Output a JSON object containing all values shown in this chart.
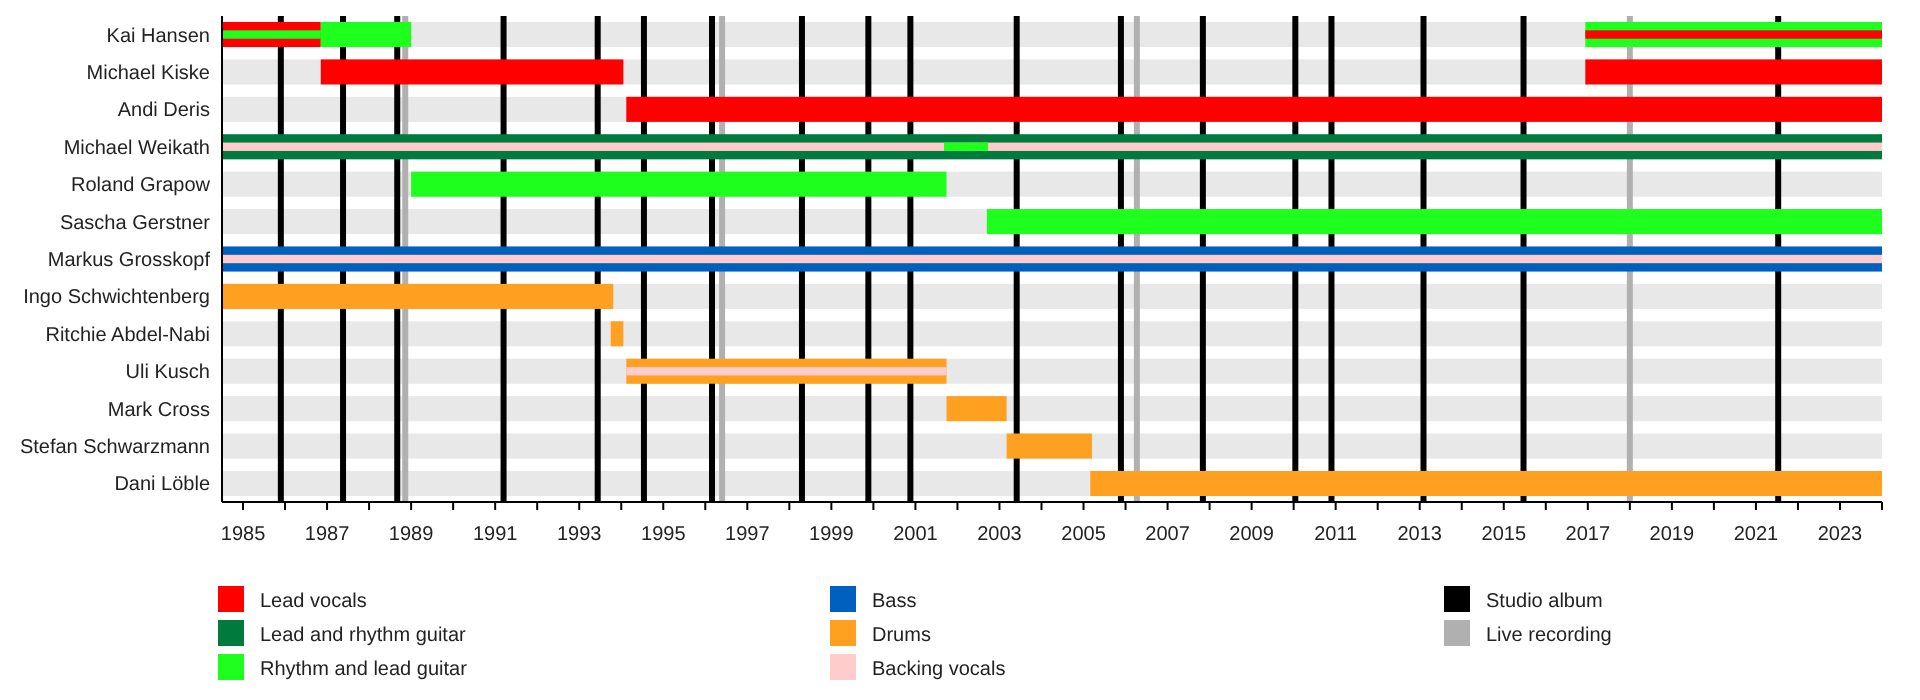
{
  "chart_data": {
    "type": "bar",
    "orientation": "horizontal",
    "legend": "bottom",
    "categories": [
      "Kai Hansen",
      "Michael Kiske",
      "Andi Deris",
      "Michael Weikath",
      "Roland Grapow",
      "Sascha Gerstner",
      "Markus Grosskopf",
      "Ingo Schwichtenberg",
      "Ritchie Abdel-Nabi",
      "Uli Kusch",
      "Mark Cross",
      "Stefan Schwarzmann",
      "Dani Löble"
    ],
    "xlim": [
      1984.5,
      2024
    ],
    "xticks": [
      1985,
      {
        "value": 1986,
        "label": null
      },
      1987,
      {
        "value": 1988,
        "label": null
      },
      1989,
      {
        "value": 1990,
        "label": null
      },
      1991,
      {
        "value": 1992,
        "label": null
      },
      1993,
      {
        "value": 1994,
        "label": null
      },
      1995,
      {
        "value": 1996,
        "label": null
      },
      1997,
      {
        "value": 1998,
        "label": null
      },
      1999,
      {
        "value": 2000,
        "label": null
      },
      2001,
      {
        "value": 2002,
        "label": null
      },
      2003,
      {
        "value": 2004,
        "label": null
      },
      2005,
      {
        "value": 2006,
        "label": null
      },
      2007,
      {
        "value": 2008,
        "label": null
      },
      2009,
      {
        "value": 2010,
        "label": null
      },
      2011,
      {
        "value": 2012,
        "label": null
      },
      2013,
      {
        "value": 2014,
        "label": null
      },
      2015,
      {
        "value": 2016,
        "label": null
      },
      2017,
      {
        "value": 2018,
        "label": null
      },
      2019,
      {
        "value": 2020,
        "label": null
      },
      2021,
      {
        "value": 2022,
        "label": null
      },
      2023,
      {
        "value": 2024,
        "label": null
      }
    ],
    "series": [
      {
        "name": "Lead vocals",
        "color": "#ff0000",
        "base": [
          1984.5,
          1986.85,
          1994.12,
          null,
          null,
          null,
          null,
          null,
          null,
          null,
          null,
          null,
          null
        ],
        "values": [
          2.35,
          7.2,
          29.88,
          null,
          null,
          null,
          null,
          null,
          null,
          null,
          null,
          null,
          null
        ]
      },
      {
        "name": "Lead and rhythm guitar",
        "color": "#007a3d",
        "base": [
          null,
          null,
          null,
          1984.5,
          null,
          null,
          null,
          null,
          null,
          null,
          null,
          null,
          null
        ],
        "values": [
          null,
          null,
          null,
          39.5,
          null,
          null,
          null,
          null,
          null,
          null,
          null,
          null,
          null
        ]
      },
      {
        "name": "Rhythm and lead guitar",
        "color": "#1eff1e",
        "base": [
          2016.94,
          null,
          null,
          null,
          1989.0,
          2002.7,
          null,
          null,
          null,
          null,
          null,
          null,
          null
        ],
        "values": [
          7.06,
          null,
          null,
          null,
          12.74,
          21.3,
          null,
          null,
          null,
          null,
          null,
          null,
          null
        ]
      },
      {
        "name": "Bass",
        "color": "#0060c0",
        "base": [
          null,
          null,
          null,
          null,
          null,
          null,
          1984.5,
          null,
          null,
          null,
          null,
          null,
          null
        ],
        "values": [
          null,
          null,
          null,
          null,
          null,
          null,
          39.5,
          null,
          null,
          null,
          null,
          null,
          null
        ]
      },
      {
        "name": "Drums",
        "color": "#ffa020",
        "base": [
          null,
          null,
          null,
          null,
          null,
          null,
          null,
          1984.5,
          1993.75,
          1994.12,
          2001.74,
          2003.17,
          2005.16
        ],
        "values": [
          null,
          null,
          null,
          null,
          null,
          null,
          null,
          9.31,
          0.3,
          7.62,
          1.43,
          2.03,
          18.84
        ]
      },
      {
        "name": "Backing vocals",
        "color": "#ffcccc",
        "base": [
          null,
          null,
          null,
          1984.5,
          null,
          null,
          1984.5,
          null,
          null,
          1994.12,
          null,
          null,
          null
        ],
        "values": [
          null,
          null,
          null,
          39.5,
          null,
          null,
          39.5,
          null,
          null,
          7.62,
          null,
          null,
          null
        ]
      },
      {
        "color": "#1eff1e",
        "base": [
          1986.85,
          null,
          null,
          2001.68,
          null,
          null,
          null,
          null,
          null,
          null,
          null,
          null,
          null
        ],
        "values": [
          2.15,
          null,
          null,
          1.05,
          null,
          null,
          null,
          null,
          null,
          null,
          null,
          null,
          null
        ]
      },
      {
        "color": "#ff0000",
        "base": [
          2016.94,
          2016.94,
          null,
          null,
          null,
          null,
          null,
          null,
          null,
          null,
          null,
          null,
          null
        ],
        "values": [
          7.06,
          7.06,
          null,
          null,
          null,
          null,
          null,
          null,
          null,
          null,
          null,
          null,
          null
        ]
      },
      {
        "color": "#1eff1e",
        "base": [
          1984.5,
          null,
          null,
          null,
          null,
          null,
          null,
          null,
          null,
          null,
          null,
          null,
          null
        ],
        "values": [
          2.35,
          null,
          null,
          null,
          null,
          null,
          null,
          null,
          null,
          null,
          null,
          null,
          null
        ]
      }
    ],
    "ref_lines": [
      {
        "axis": "x",
        "value": 1985.9,
        "label": "Studio album",
        "color": "#000000"
      },
      {
        "axis": "x",
        "value": 1987.38,
        "color": "#000000"
      },
      {
        "axis": "x",
        "value": 1988.67,
        "color": "#000000"
      },
      {
        "axis": "x",
        "value": 1991.2,
        "color": "#000000"
      },
      {
        "axis": "x",
        "value": 1993.44,
        "color": "#000000"
      },
      {
        "axis": "x",
        "value": 1994.54,
        "color": "#000000"
      },
      {
        "axis": "x",
        "value": 1996.16,
        "color": "#000000"
      },
      {
        "axis": "x",
        "value": 1998.3,
        "color": "#000000"
      },
      {
        "axis": "x",
        "value": 1999.88,
        "color": "#000000"
      },
      {
        "axis": "x",
        "value": 2000.88,
        "color": "#000000"
      },
      {
        "axis": "x",
        "value": 2003.41,
        "color": "#000000"
      },
      {
        "axis": "x",
        "value": 2005.89,
        "color": "#000000"
      },
      {
        "axis": "x",
        "value": 2007.84,
        "color": "#000000"
      },
      {
        "axis": "x",
        "value": 2010.04,
        "color": "#000000"
      },
      {
        "axis": "x",
        "value": 2010.9,
        "color": "#000000"
      },
      {
        "axis": "x",
        "value": 2013.09,
        "color": "#000000"
      },
      {
        "axis": "x",
        "value": 2015.47,
        "color": "#000000"
      },
      {
        "axis": "x",
        "value": 2021.53,
        "color": "#000000"
      },
      {
        "axis": "x",
        "value": 1988.86,
        "label": "Live recording",
        "color": "#b0b0b0"
      },
      {
        "axis": "x",
        "value": 1996.4,
        "color": "#b0b0b0"
      },
      {
        "axis": "x",
        "value": 2006.27,
        "color": "#b0b0b0"
      },
      {
        "axis": "x",
        "value": 2018.0,
        "color": "#b0b0b0"
      }
    ]
  }
}
